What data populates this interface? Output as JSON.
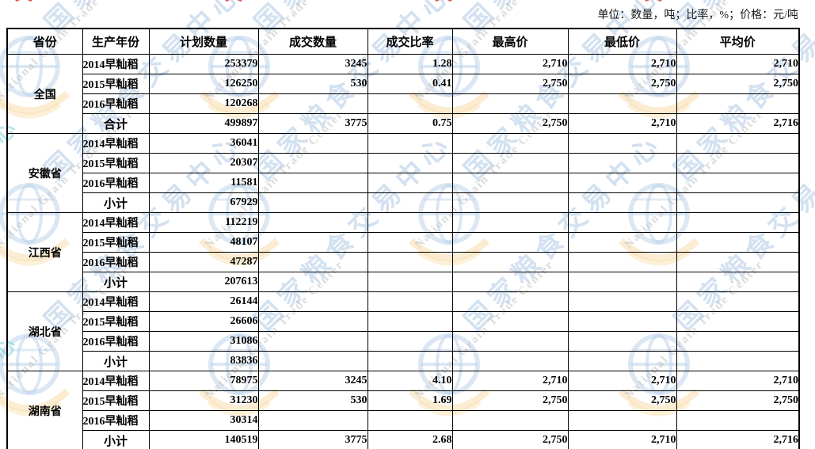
{
  "unit_note": "单位：数量，吨；比率，%；价格：元/吨",
  "watermark": {
    "cn_name": "国家粮食交易中心",
    "en_name": "National Grain Trade Center",
    "red_glyph": "义",
    "cyan_glyph": "心",
    "colors": {
      "blue": "#7fa8d6",
      "gray": "#bfbfbf",
      "orange": "#f2c269",
      "red": "#d23b2f",
      "cyan": "#72cfd4"
    }
  },
  "table": {
    "columns": [
      "省份",
      "生产年份",
      "计划数量",
      "成交数量",
      "成交比率",
      "最高价",
      "最低价",
      "平均价"
    ],
    "groups": [
      {
        "province": "全国",
        "rows": [
          {
            "year": "2014早籼稻",
            "subtotal": false,
            "plan": "253379",
            "deal": "3245",
            "ratio": "1.28",
            "high": "2,710",
            "low": "2,710",
            "avg": "2,710"
          },
          {
            "year": "2015早籼稻",
            "subtotal": false,
            "plan": "126250",
            "deal": "530",
            "ratio": "0.41",
            "high": "2,750",
            "low": "2,750",
            "avg": "2,750"
          },
          {
            "year": "2016早籼稻",
            "subtotal": false,
            "plan": "120268",
            "deal": "",
            "ratio": "",
            "high": "",
            "low": "",
            "avg": ""
          },
          {
            "year": "合计",
            "subtotal": true,
            "plan": "499897",
            "deal": "3775",
            "ratio": "0.75",
            "high": "2,750",
            "low": "2,710",
            "avg": "2,716"
          }
        ]
      },
      {
        "province": "安徽省",
        "rows": [
          {
            "year": "2014早籼稻",
            "subtotal": false,
            "plan": "36041",
            "deal": "",
            "ratio": "",
            "high": "",
            "low": "",
            "avg": ""
          },
          {
            "year": "2015早籼稻",
            "subtotal": false,
            "plan": "20307",
            "deal": "",
            "ratio": "",
            "high": "",
            "low": "",
            "avg": ""
          },
          {
            "year": "2016早籼稻",
            "subtotal": false,
            "plan": "11581",
            "deal": "",
            "ratio": "",
            "high": "",
            "low": "",
            "avg": ""
          },
          {
            "year": "小计",
            "subtotal": true,
            "plan": "67929",
            "deal": "",
            "ratio": "",
            "high": "",
            "low": "",
            "avg": ""
          }
        ]
      },
      {
        "province": "江西省",
        "rows": [
          {
            "year": "2014早籼稻",
            "subtotal": false,
            "plan": "112219",
            "deal": "",
            "ratio": "",
            "high": "",
            "low": "",
            "avg": ""
          },
          {
            "year": "2015早籼稻",
            "subtotal": false,
            "plan": "48107",
            "deal": "",
            "ratio": "",
            "high": "",
            "low": "",
            "avg": ""
          },
          {
            "year": "2016早籼稻",
            "subtotal": false,
            "plan": "47287",
            "deal": "",
            "ratio": "",
            "high": "",
            "low": "",
            "avg": ""
          },
          {
            "year": "小计",
            "subtotal": true,
            "plan": "207613",
            "deal": "",
            "ratio": "",
            "high": "",
            "low": "",
            "avg": ""
          }
        ]
      },
      {
        "province": "湖北省",
        "rows": [
          {
            "year": "2014早籼稻",
            "subtotal": false,
            "plan": "26144",
            "deal": "",
            "ratio": "",
            "high": "",
            "low": "",
            "avg": ""
          },
          {
            "year": "2015早籼稻",
            "subtotal": false,
            "plan": "26606",
            "deal": "",
            "ratio": "",
            "high": "",
            "low": "",
            "avg": ""
          },
          {
            "year": "2016早籼稻",
            "subtotal": false,
            "plan": "31086",
            "deal": "",
            "ratio": "",
            "high": "",
            "low": "",
            "avg": ""
          },
          {
            "year": "小计",
            "subtotal": true,
            "plan": "83836",
            "deal": "",
            "ratio": "",
            "high": "",
            "low": "",
            "avg": ""
          }
        ]
      },
      {
        "province": "湖南省",
        "rows": [
          {
            "year": "2014早籼稻",
            "subtotal": false,
            "plan": "78975",
            "deal": "3245",
            "ratio": "4.10",
            "high": "2,710",
            "low": "2,710",
            "avg": "2,710"
          },
          {
            "year": "2015早籼稻",
            "subtotal": false,
            "plan": "31230",
            "deal": "530",
            "ratio": "1.69",
            "high": "2,750",
            "low": "2,750",
            "avg": "2,750"
          },
          {
            "year": "2016早籼稻",
            "subtotal": false,
            "plan": "30314",
            "deal": "",
            "ratio": "",
            "high": "",
            "low": "",
            "avg": ""
          },
          {
            "year": "小计",
            "subtotal": true,
            "plan": "140519",
            "deal": "3775",
            "ratio": "2.68",
            "high": "2,750",
            "low": "2,710",
            "avg": "2,716"
          }
        ]
      }
    ]
  }
}
